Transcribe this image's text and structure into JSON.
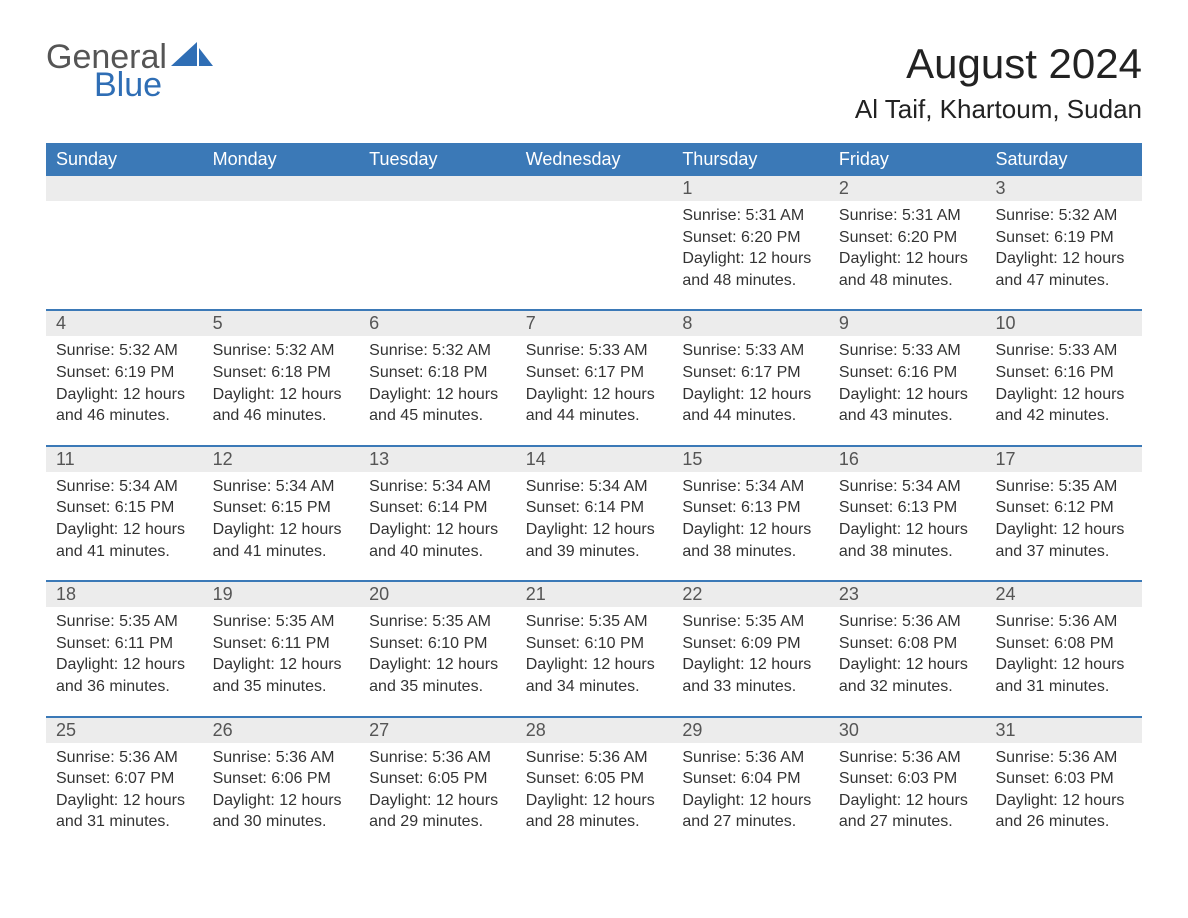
{
  "logo": {
    "text1": "General",
    "text2": "Blue",
    "sail_color": "#2f6eb5"
  },
  "title": "August 2024",
  "subtitle": "Al Taif, Khartoum, Sudan",
  "colors": {
    "header_bg": "#3b79b7",
    "header_text": "#ffffff",
    "daynum_bg": "#ececec",
    "daynum_text": "#555555",
    "border_top": "#3b79b7",
    "body_text": "#333333"
  },
  "weekdays": [
    "Sunday",
    "Monday",
    "Tuesday",
    "Wednesday",
    "Thursday",
    "Friday",
    "Saturday"
  ],
  "weeks": [
    [
      null,
      null,
      null,
      null,
      {
        "n": "1",
        "sunrise": "Sunrise: 5:31 AM",
        "sunset": "Sunset: 6:20 PM",
        "daylight1": "Daylight: 12 hours",
        "daylight2": "and 48 minutes."
      },
      {
        "n": "2",
        "sunrise": "Sunrise: 5:31 AM",
        "sunset": "Sunset: 6:20 PM",
        "daylight1": "Daylight: 12 hours",
        "daylight2": "and 48 minutes."
      },
      {
        "n": "3",
        "sunrise": "Sunrise: 5:32 AM",
        "sunset": "Sunset: 6:19 PM",
        "daylight1": "Daylight: 12 hours",
        "daylight2": "and 47 minutes."
      }
    ],
    [
      {
        "n": "4",
        "sunrise": "Sunrise: 5:32 AM",
        "sunset": "Sunset: 6:19 PM",
        "daylight1": "Daylight: 12 hours",
        "daylight2": "and 46 minutes."
      },
      {
        "n": "5",
        "sunrise": "Sunrise: 5:32 AM",
        "sunset": "Sunset: 6:18 PM",
        "daylight1": "Daylight: 12 hours",
        "daylight2": "and 46 minutes."
      },
      {
        "n": "6",
        "sunrise": "Sunrise: 5:32 AM",
        "sunset": "Sunset: 6:18 PM",
        "daylight1": "Daylight: 12 hours",
        "daylight2": "and 45 minutes."
      },
      {
        "n": "7",
        "sunrise": "Sunrise: 5:33 AM",
        "sunset": "Sunset: 6:17 PM",
        "daylight1": "Daylight: 12 hours",
        "daylight2": "and 44 minutes."
      },
      {
        "n": "8",
        "sunrise": "Sunrise: 5:33 AM",
        "sunset": "Sunset: 6:17 PM",
        "daylight1": "Daylight: 12 hours",
        "daylight2": "and 44 minutes."
      },
      {
        "n": "9",
        "sunrise": "Sunrise: 5:33 AM",
        "sunset": "Sunset: 6:16 PM",
        "daylight1": "Daylight: 12 hours",
        "daylight2": "and 43 minutes."
      },
      {
        "n": "10",
        "sunrise": "Sunrise: 5:33 AM",
        "sunset": "Sunset: 6:16 PM",
        "daylight1": "Daylight: 12 hours",
        "daylight2": "and 42 minutes."
      }
    ],
    [
      {
        "n": "11",
        "sunrise": "Sunrise: 5:34 AM",
        "sunset": "Sunset: 6:15 PM",
        "daylight1": "Daylight: 12 hours",
        "daylight2": "and 41 minutes."
      },
      {
        "n": "12",
        "sunrise": "Sunrise: 5:34 AM",
        "sunset": "Sunset: 6:15 PM",
        "daylight1": "Daylight: 12 hours",
        "daylight2": "and 41 minutes."
      },
      {
        "n": "13",
        "sunrise": "Sunrise: 5:34 AM",
        "sunset": "Sunset: 6:14 PM",
        "daylight1": "Daylight: 12 hours",
        "daylight2": "and 40 minutes."
      },
      {
        "n": "14",
        "sunrise": "Sunrise: 5:34 AM",
        "sunset": "Sunset: 6:14 PM",
        "daylight1": "Daylight: 12 hours",
        "daylight2": "and 39 minutes."
      },
      {
        "n": "15",
        "sunrise": "Sunrise: 5:34 AM",
        "sunset": "Sunset: 6:13 PM",
        "daylight1": "Daylight: 12 hours",
        "daylight2": "and 38 minutes."
      },
      {
        "n": "16",
        "sunrise": "Sunrise: 5:34 AM",
        "sunset": "Sunset: 6:13 PM",
        "daylight1": "Daylight: 12 hours",
        "daylight2": "and 38 minutes."
      },
      {
        "n": "17",
        "sunrise": "Sunrise: 5:35 AM",
        "sunset": "Sunset: 6:12 PM",
        "daylight1": "Daylight: 12 hours",
        "daylight2": "and 37 minutes."
      }
    ],
    [
      {
        "n": "18",
        "sunrise": "Sunrise: 5:35 AM",
        "sunset": "Sunset: 6:11 PM",
        "daylight1": "Daylight: 12 hours",
        "daylight2": "and 36 minutes."
      },
      {
        "n": "19",
        "sunrise": "Sunrise: 5:35 AM",
        "sunset": "Sunset: 6:11 PM",
        "daylight1": "Daylight: 12 hours",
        "daylight2": "and 35 minutes."
      },
      {
        "n": "20",
        "sunrise": "Sunrise: 5:35 AM",
        "sunset": "Sunset: 6:10 PM",
        "daylight1": "Daylight: 12 hours",
        "daylight2": "and 35 minutes."
      },
      {
        "n": "21",
        "sunrise": "Sunrise: 5:35 AM",
        "sunset": "Sunset: 6:10 PM",
        "daylight1": "Daylight: 12 hours",
        "daylight2": "and 34 minutes."
      },
      {
        "n": "22",
        "sunrise": "Sunrise: 5:35 AM",
        "sunset": "Sunset: 6:09 PM",
        "daylight1": "Daylight: 12 hours",
        "daylight2": "and 33 minutes."
      },
      {
        "n": "23",
        "sunrise": "Sunrise: 5:36 AM",
        "sunset": "Sunset: 6:08 PM",
        "daylight1": "Daylight: 12 hours",
        "daylight2": "and 32 minutes."
      },
      {
        "n": "24",
        "sunrise": "Sunrise: 5:36 AM",
        "sunset": "Sunset: 6:08 PM",
        "daylight1": "Daylight: 12 hours",
        "daylight2": "and 31 minutes."
      }
    ],
    [
      {
        "n": "25",
        "sunrise": "Sunrise: 5:36 AM",
        "sunset": "Sunset: 6:07 PM",
        "daylight1": "Daylight: 12 hours",
        "daylight2": "and 31 minutes."
      },
      {
        "n": "26",
        "sunrise": "Sunrise: 5:36 AM",
        "sunset": "Sunset: 6:06 PM",
        "daylight1": "Daylight: 12 hours",
        "daylight2": "and 30 minutes."
      },
      {
        "n": "27",
        "sunrise": "Sunrise: 5:36 AM",
        "sunset": "Sunset: 6:05 PM",
        "daylight1": "Daylight: 12 hours",
        "daylight2": "and 29 minutes."
      },
      {
        "n": "28",
        "sunrise": "Sunrise: 5:36 AM",
        "sunset": "Sunset: 6:05 PM",
        "daylight1": "Daylight: 12 hours",
        "daylight2": "and 28 minutes."
      },
      {
        "n": "29",
        "sunrise": "Sunrise: 5:36 AM",
        "sunset": "Sunset: 6:04 PM",
        "daylight1": "Daylight: 12 hours",
        "daylight2": "and 27 minutes."
      },
      {
        "n": "30",
        "sunrise": "Sunrise: 5:36 AM",
        "sunset": "Sunset: 6:03 PM",
        "daylight1": "Daylight: 12 hours",
        "daylight2": "and 27 minutes."
      },
      {
        "n": "31",
        "sunrise": "Sunrise: 5:36 AM",
        "sunset": "Sunset: 6:03 PM",
        "daylight1": "Daylight: 12 hours",
        "daylight2": "and 26 minutes."
      }
    ]
  ]
}
